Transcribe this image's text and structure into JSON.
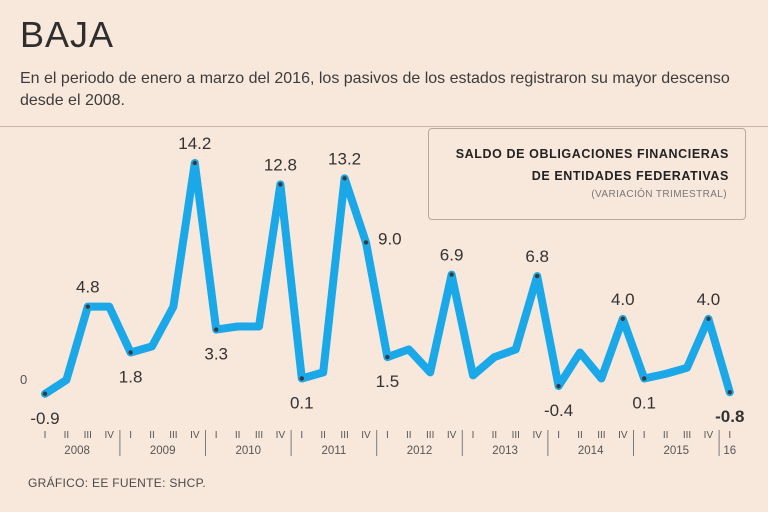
{
  "header": {
    "title": "BAJA",
    "subtitle": "En el periodo de enero a marzo del 2016, los pasivos de los estados registraron su mayor descenso desde el 2008."
  },
  "legend": {
    "line1": "SALDO DE OBLIGACIONES FINANCIERAS",
    "line2": "DE ENTIDADES FEDERATIVAS",
    "sub": "(VARIACIÓN TRIMESTRAL)"
  },
  "footer": {
    "source": "GRÁFICO: EE  FUENTE: SHCP."
  },
  "colors": {
    "line": "#1aa8e8",
    "point": "#3a3a3a",
    "background": "#f8e8dc"
  },
  "chart_data": {
    "type": "line",
    "title": "SALDO DE OBLIGACIONES FINANCIERAS DE ENTIDADES FEDERATIVAS",
    "subtitle": "(VARIACIÓN TRIMESTRAL)",
    "xlabel": "",
    "ylabel": "",
    "ylim": [
      -1.5,
      16
    ],
    "zero_label": "0",
    "quarters": [
      "I",
      "II",
      "III",
      "IV",
      "I",
      "II",
      "III",
      "IV",
      "I",
      "II",
      "III",
      "IV",
      "I",
      "II",
      "III",
      "IV",
      "I",
      "II",
      "III",
      "IV",
      "I",
      "II",
      "III",
      "IV",
      "I",
      "II",
      "III",
      "IV",
      "I",
      "II",
      "III",
      "IV",
      "I"
    ],
    "years": [
      {
        "label": "2008",
        "start": 0,
        "end": 3
      },
      {
        "label": "2009",
        "start": 4,
        "end": 7
      },
      {
        "label": "2010",
        "start": 8,
        "end": 11
      },
      {
        "label": "2011",
        "start": 12,
        "end": 15
      },
      {
        "label": "2012",
        "start": 16,
        "end": 19
      },
      {
        "label": "2013",
        "start": 20,
        "end": 23
      },
      {
        "label": "2014",
        "start": 24,
        "end": 27
      },
      {
        "label": "2015",
        "start": 28,
        "end": 31
      },
      {
        "label": "16",
        "start": 32,
        "end": 32
      }
    ],
    "series": [
      {
        "name": "Variación trimestral",
        "values": [
          -0.9,
          0.0,
          4.8,
          4.8,
          1.8,
          2.2,
          4.8,
          14.2,
          3.3,
          3.5,
          3.5,
          12.8,
          0.1,
          0.5,
          13.2,
          9.0,
          1.5,
          2.0,
          0.5,
          6.9,
          0.3,
          1.5,
          2.0,
          6.8,
          -0.4,
          1.8,
          0.1,
          4.0,
          0.1,
          0.4,
          0.8,
          4.0,
          -0.8
        ]
      }
    ],
    "data_labels": [
      {
        "index": 0,
        "text": "-0.9",
        "pos": "below"
      },
      {
        "index": 2,
        "text": "4.8",
        "pos": "above"
      },
      {
        "index": 4,
        "text": "1.8",
        "pos": "below"
      },
      {
        "index": 7,
        "text": "14.2",
        "pos": "above"
      },
      {
        "index": 8,
        "text": "3.3",
        "pos": "below"
      },
      {
        "index": 11,
        "text": "12.8",
        "pos": "above"
      },
      {
        "index": 12,
        "text": "0.1",
        "pos": "below"
      },
      {
        "index": 14,
        "text": "13.2",
        "pos": "above"
      },
      {
        "index": 15,
        "text": "9.0",
        "pos": "right"
      },
      {
        "index": 16,
        "text": "1.5",
        "pos": "below"
      },
      {
        "index": 19,
        "text": "6.9",
        "pos": "above"
      },
      {
        "index": 23,
        "text": "6.8",
        "pos": "above"
      },
      {
        "index": 24,
        "text": "-0.4",
        "pos": "below"
      },
      {
        "index": 27,
        "text": "4.0",
        "pos": "above"
      },
      {
        "index": 28,
        "text": "0.1",
        "pos": "below"
      },
      {
        "index": 31,
        "text": "4.0",
        "pos": "above"
      },
      {
        "index": 32,
        "text": "-0.8",
        "pos": "below",
        "bold": true
      }
    ],
    "marked_points": [
      0,
      2,
      4,
      7,
      8,
      11,
      12,
      14,
      15,
      16,
      19,
      23,
      24,
      27,
      28,
      31,
      32
    ]
  }
}
